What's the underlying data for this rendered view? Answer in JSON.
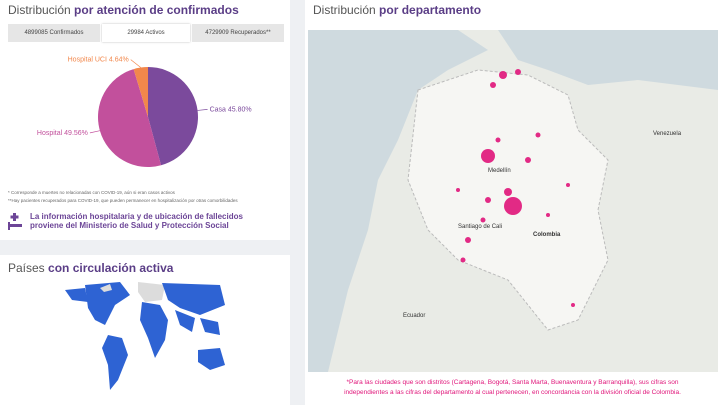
{
  "left_top": {
    "title_light": "Distribución",
    "title_bold": "por atención de confirmados",
    "tabs": [
      "4899085 Confirmados",
      "29984 Activos",
      "4729909 Recuperados**"
    ],
    "pie": {
      "type": "pie",
      "categories": [
        "Casa",
        "Hospital",
        "Hospital UCI"
      ],
      "values": [
        45.8,
        49.56,
        4.64
      ],
      "value_labels": [
        "45.80%",
        "49.56%",
        "4.64%"
      ],
      "colors": [
        "#7b4a9c",
        "#c2509c",
        "#f2874b"
      ]
    },
    "notes": [
      "* Corresponde a muertes no relacionadas con COVID-19, aún si eran casos activos",
      "**Hay pacientes recuperados para COVID-19, que pueden permanecer en hospitalización por otras comorbilidades"
    ],
    "banner": [
      "La información hospitalaria y de ubicación de fallecidos",
      "proviene del Ministerio de Salud y Protección Social"
    ]
  },
  "left_bottom": {
    "title_light": "Países",
    "title_bold": "con circulación activa"
  },
  "right": {
    "title_light": "Distribución",
    "title_bold": "por departamento",
    "map_labels": [
      "Venezuela",
      "Medellín",
      "Colombia",
      "Santiago de Cali",
      "Ecuador"
    ],
    "footnote": [
      "*Para las ciudades que son distritos (Cartagena, Bogotá, Santa Marta, Buenaventura y Barranquilla), sus cifras son",
      "independientes a las cifras del departamento al cual pertenecen, en concordancia con la división oficial de Colombia."
    ]
  }
}
